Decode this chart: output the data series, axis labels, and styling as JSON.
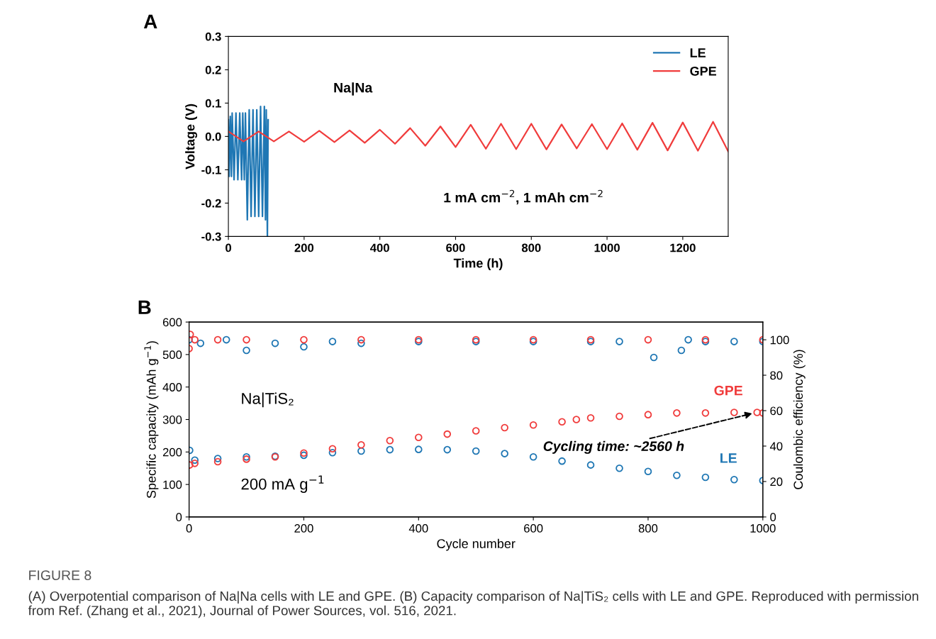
{
  "chart_data": [
    {
      "type": "line",
      "title": "A",
      "xlabel": "Time (h)",
      "ylabel": "Voltage (V)",
      "xlim": [
        0,
        1320
      ],
      "ylim": [
        -0.3,
        0.3
      ],
      "xticks": [
        0,
        200,
        400,
        600,
        800,
        1000,
        1200
      ],
      "yticks": [
        -0.3,
        -0.2,
        -0.1,
        {
          "value": 0,
          "label": "0.0"
        },
        0.1,
        0.2,
        0.3
      ],
      "legend": "top right",
      "grid": false,
      "marker": "none",
      "line_style": "solid",
      "annotations": [
        "Na|Na",
        "1 mA cm$^{−2}$, 1 mAh cm$^{−2}$"
      ],
      "series": [
        {
          "name": "LE",
          "color": "#1f77b4",
          "x": [
            0,
            2,
            5,
            8,
            10,
            15,
            20,
            25,
            30,
            35,
            38,
            42,
            45,
            50,
            55,
            60,
            65,
            70,
            75,
            80,
            85,
            90,
            95,
            98,
            100,
            103,
            105
          ],
          "values": [
            0.05,
            -0.12,
            0.06,
            -0.12,
            0.07,
            -0.13,
            0.07,
            -0.13,
            0.07,
            -0.13,
            0.07,
            -0.13,
            0.07,
            -0.25,
            0.08,
            -0.24,
            0.08,
            -0.24,
            0.08,
            -0.24,
            0.09,
            -0.24,
            0.09,
            -0.25,
            0.08,
            -0.3,
            0.05
          ]
        },
        {
          "name": "GPE",
          "color": "#f03c3c",
          "x": [
            0,
            40,
            80,
            120,
            160,
            200,
            240,
            280,
            320,
            360,
            400,
            440,
            480,
            520,
            560,
            600,
            640,
            680,
            720,
            760,
            800,
            840,
            880,
            920,
            960,
            1000,
            1040,
            1080,
            1120,
            1160,
            1200,
            1240,
            1280,
            1320
          ],
          "values": [
            0.015,
            -0.015,
            0.015,
            -0.015,
            0.015,
            -0.016,
            0.017,
            -0.017,
            0.018,
            -0.019,
            0.02,
            -0.022,
            0.025,
            -0.028,
            0.03,
            -0.032,
            0.035,
            -0.037,
            0.038,
            -0.038,
            0.038,
            -0.039,
            0.036,
            -0.036,
            0.037,
            -0.038,
            0.039,
            -0.04,
            0.041,
            -0.042,
            0.042,
            -0.043,
            0.044,
            -0.045
          ]
        }
      ]
    },
    {
      "type": "scatter",
      "title": "B",
      "xlabel": "Cycle number",
      "ylabel": "Specific capacity (mAh g$^{−1}$)",
      "y2label": "Coulombic efficiency (%)",
      "xlim": [
        0,
        1000
      ],
      "ylim": [
        0,
        600
      ],
      "y2lim": [
        0,
        110
      ],
      "xticks": [
        0,
        200,
        400,
        600,
        800,
        1000
      ],
      "yticks": [
        0,
        100,
        200,
        300,
        400,
        500,
        600
      ],
      "y2ticks": [
        0,
        20,
        40,
        60,
        80,
        100
      ],
      "legend": false,
      "grid": false,
      "marker": "circle",
      "annotations": [
        "Na|TiS₂",
        "200 mA g$^{−1}$",
        {
          "text": "Cycling time: ~2560 h",
          "x": 985,
          "y": 320
        },
        "FIGURE 8",
        "(A) Overpotential comparison of Na|Na cells with LE and GPE. (B) Capacity comparison of Na|TiS₂ cells with LE and GPE. Reproduced with permission from Ref. (Zhang et al., 2021), Journal of Power Sources, vol. 516, 2021."
      ],
      "series": [
        {
          "name": "LE",
          "color": "#1f77b4",
          "x": [
            1,
            10,
            50,
            100,
            150,
            200,
            250,
            300,
            350,
            400,
            450,
            500,
            550,
            600,
            650,
            700,
            750,
            800,
            850,
            900,
            950,
            1000
          ],
          "values": [
            205,
            175,
            180,
            185,
            187,
            190,
            198,
            203,
            207,
            208,
            207,
            203,
            195,
            185,
            172,
            160,
            150,
            140,
            128,
            122,
            115,
            112
          ]
        },
        {
          "name": "GPE",
          "color": "#f03c3c",
          "x": [
            1,
            10,
            50,
            100,
            150,
            200,
            250,
            300,
            350,
            400,
            450,
            500,
            550,
            600,
            650,
            675,
            700,
            750,
            800,
            850,
            900,
            950,
            990,
            1000
          ],
          "values": [
            160,
            165,
            170,
            178,
            185,
            197,
            210,
            222,
            235,
            245,
            255,
            265,
            275,
            283,
            293,
            300,
            305,
            310,
            315,
            320,
            320,
            322,
            322,
            320
          ]
        },
        {
          "color": "#1f77b4",
          "axis": "y2",
          "x": [
            0,
            20,
            65,
            100,
            150,
            200,
            250,
            300,
            400,
            500,
            600,
            700,
            750,
            810,
            858,
            870,
            900,
            950,
            1000
          ],
          "values": [
            100,
            98,
            100,
            94,
            98,
            96,
            99,
            98,
            99,
            99,
            99,
            99,
            99,
            90,
            94,
            100,
            99,
            99,
            99
          ]
        },
        {
          "color": "#f03c3c",
          "axis": "y2",
          "x": [
            0,
            2,
            10,
            50,
            100,
            200,
            300,
            400,
            500,
            600,
            700,
            800,
            900,
            1000
          ],
          "values": [
            95,
            103,
            100,
            100,
            100,
            100,
            100,
            100,
            100,
            100,
            100,
            100,
            100,
            100
          ]
        }
      ]
    }
  ]
}
